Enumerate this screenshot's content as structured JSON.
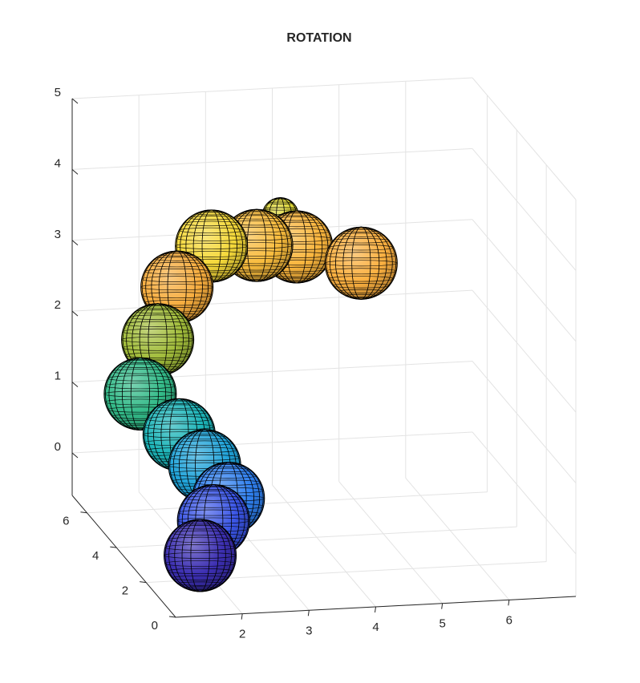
{
  "chart_data": {
    "type": "scatter3d",
    "title": "ROTATION",
    "xlabel": "",
    "ylabel": "",
    "zlabel": "",
    "grid": true,
    "colormap": "parula",
    "xlim": [
      1,
      7
    ],
    "ylim": [
      0,
      7
    ],
    "zlim": [
      -0.6,
      5
    ],
    "x_ticks": [
      2,
      3,
      4,
      5,
      6
    ],
    "y_ticks": [
      0,
      2,
      4,
      6
    ],
    "z_ticks": [
      0,
      1,
      2,
      3,
      4,
      5
    ],
    "spheres": [
      {
        "x": 1.5,
        "y": 0.6,
        "z": 0.1,
        "r": 0.5,
        "color": "#3c2fb2"
      },
      {
        "x": 1.9,
        "y": 1.5,
        "z": 0.35,
        "r": 0.5,
        "color": "#3a55e6"
      },
      {
        "x": 2.3,
        "y": 2.3,
        "z": 0.45,
        "r": 0.5,
        "color": "#2f80f0"
      },
      {
        "x": 2.1,
        "y": 3.0,
        "z": 0.75,
        "r": 0.5,
        "color": "#20a4da"
      },
      {
        "x": 1.85,
        "y": 3.6,
        "z": 1.05,
        "r": 0.5,
        "color": "#1cb5b9"
      },
      {
        "x": 1.4,
        "y": 4.2,
        "z": 1.5,
        "r": 0.5,
        "color": "#33bb89"
      },
      {
        "x": 1.75,
        "y": 4.6,
        "z": 2.15,
        "r": 0.5,
        "color": "#a2bd3b"
      },
      {
        "x": 2.15,
        "y": 5.1,
        "z": 2.75,
        "r": 0.5,
        "color": "#f7ad3e"
      },
      {
        "x": 2.8,
        "y": 5.7,
        "z": 3.15,
        "r": 0.5,
        "color": "#f5d93a"
      },
      {
        "x": 3.5,
        "y": 5.8,
        "z": 3.1,
        "r": 0.5,
        "color": "#f9bc3d"
      },
      {
        "x": 4.1,
        "y": 5.8,
        "z": 3.05,
        "r": 0.5,
        "color": "#fbb63d"
      },
      {
        "x": 3.9,
        "y": 6.0,
        "z": 3.45,
        "r": 0.25,
        "color": "#dcd534"
      },
      {
        "x": 5.0,
        "y": 5.5,
        "z": 2.85,
        "r": 0.5,
        "color": "#fbb040"
      }
    ]
  }
}
